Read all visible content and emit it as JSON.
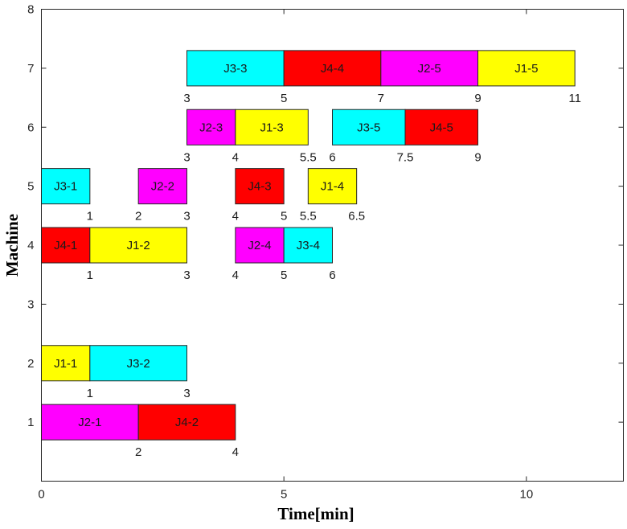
{
  "chart_data": {
    "type": "gantt",
    "xlabel": "Time[min]",
    "ylabel": "Machine",
    "xlim": [
      0,
      12
    ],
    "ylim": [
      0,
      8
    ],
    "xticks": [
      0,
      5,
      10
    ],
    "yticks": [
      1,
      2,
      3,
      4,
      5,
      6,
      7,
      8
    ],
    "grid": false,
    "colors": {
      "J1": "#ffff00",
      "J2": "#ff00ff",
      "J3": "#00ffff",
      "J4": "#ff0000"
    },
    "operations": [
      {
        "label": "J2-1",
        "machine": 1,
        "start": 0,
        "end": 2,
        "job": "J2"
      },
      {
        "label": "J4-2",
        "machine": 1,
        "start": 2,
        "end": 4,
        "job": "J4"
      },
      {
        "label": "J1-1",
        "machine": 2,
        "start": 0,
        "end": 1,
        "job": "J1"
      },
      {
        "label": "J3-2",
        "machine": 2,
        "start": 1,
        "end": 3,
        "job": "J3"
      },
      {
        "label": "J4-1",
        "machine": 4,
        "start": 0,
        "end": 1,
        "job": "J4"
      },
      {
        "label": "J1-2",
        "machine": 4,
        "start": 1,
        "end": 3,
        "job": "J1"
      },
      {
        "label": "J2-4",
        "machine": 4,
        "start": 4,
        "end": 5,
        "job": "J2"
      },
      {
        "label": "J3-4",
        "machine": 4,
        "start": 5,
        "end": 6,
        "job": "J3"
      },
      {
        "label": "J3-1",
        "machine": 5,
        "start": 0,
        "end": 1,
        "job": "J3"
      },
      {
        "label": "J2-2",
        "machine": 5,
        "start": 2,
        "end": 3,
        "job": "J2"
      },
      {
        "label": "J4-3",
        "machine": 5,
        "start": 4,
        "end": 5,
        "job": "J4"
      },
      {
        "label": "J1-4",
        "machine": 5,
        "start": 5.5,
        "end": 6.5,
        "job": "J1"
      },
      {
        "label": "J2-3",
        "machine": 6,
        "start": 3,
        "end": 4,
        "job": "J2"
      },
      {
        "label": "J1-3",
        "machine": 6,
        "start": 4,
        "end": 5.5,
        "job": "J1"
      },
      {
        "label": "J3-5",
        "machine": 6,
        "start": 6,
        "end": 7.5,
        "job": "J3"
      },
      {
        "label": "J4-5",
        "machine": 6,
        "start": 7.5,
        "end": 9,
        "job": "J4"
      },
      {
        "label": "J3-3",
        "machine": 7,
        "start": 3,
        "end": 5,
        "job": "J3"
      },
      {
        "label": "J4-4",
        "machine": 7,
        "start": 5,
        "end": 7,
        "job": "J4"
      },
      {
        "label": "J2-5",
        "machine": 7,
        "start": 7,
        "end": 9,
        "job": "J2"
      },
      {
        "label": "J1-5",
        "machine": 7,
        "start": 9,
        "end": 11,
        "job": "J1"
      }
    ],
    "time_annotations": [
      {
        "machine": 1,
        "values": [
          "2",
          "4"
        ]
      },
      {
        "machine": 2,
        "values": [
          "1",
          "3"
        ]
      },
      {
        "machine": 4,
        "values": [
          "1",
          "3",
          "4",
          "5",
          "6"
        ]
      },
      {
        "machine": 5,
        "values": [
          "1",
          "2",
          "3",
          "4",
          "5",
          "5.5",
          "6.5"
        ]
      },
      {
        "machine": 6,
        "values": [
          "3",
          "4",
          "5.5",
          "6",
          "7.5",
          "9"
        ]
      },
      {
        "machine": 7,
        "values": [
          "3",
          "5",
          "7",
          "9",
          "11"
        ]
      }
    ]
  }
}
